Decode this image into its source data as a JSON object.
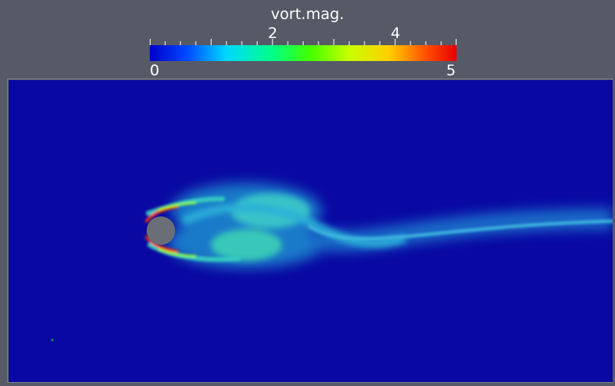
{
  "colorbar": {
    "title": "vort.mag.",
    "min_label": "0",
    "max_label": "5",
    "mid_labels": [
      "2",
      "4"
    ],
    "range": [
      0,
      5
    ],
    "colormap": "rainbow",
    "colors": [
      "#0000c8",
      "#0048ff",
      "#00d8ff",
      "#00ff88",
      "#40ff00",
      "#c8ff00",
      "#ffd000",
      "#ff5000",
      "#e80000"
    ]
  },
  "scene": {
    "background_color": "#565a67",
    "field_color": "#0a08a2",
    "obstacle_color": "#6b6e76",
    "wake_colors": [
      "#1a6fd6",
      "#2bb8d6",
      "#55d6b0"
    ]
  }
}
